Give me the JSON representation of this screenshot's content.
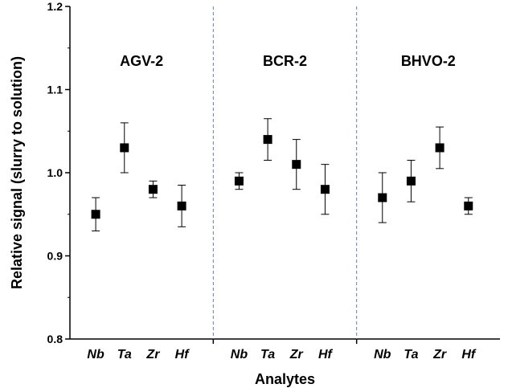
{
  "chart_data": {
    "type": "scatter",
    "xlabel": "Analytes",
    "ylabel": "Relative signal (slurry to solution)",
    "ylim": [
      0.8,
      1.2
    ],
    "yticks": [
      "0.8",
      "0.9",
      "1.0",
      "1.1",
      "1.2"
    ],
    "grid": false,
    "groups": [
      {
        "name": "AGV-2",
        "categories": [
          "Nb",
          "Ta",
          "Zr",
          "Hf"
        ],
        "values": [
          0.95,
          1.03,
          0.98,
          0.96
        ],
        "errors": [
          0.02,
          0.03,
          0.01,
          0.025
        ]
      },
      {
        "name": "BCR-2",
        "categories": [
          "Nb",
          "Ta",
          "Zr",
          "Hf"
        ],
        "values": [
          0.99,
          1.04,
          1.01,
          0.98
        ],
        "errors": [
          0.01,
          0.025,
          0.03,
          0.03
        ]
      },
      {
        "name": "BHVO-2",
        "categories": [
          "Nb",
          "Ta",
          "Zr",
          "Hf"
        ],
        "values": [
          0.97,
          0.99,
          1.03,
          0.96
        ],
        "errors": [
          0.03,
          0.025,
          0.025,
          0.01
        ]
      }
    ]
  }
}
